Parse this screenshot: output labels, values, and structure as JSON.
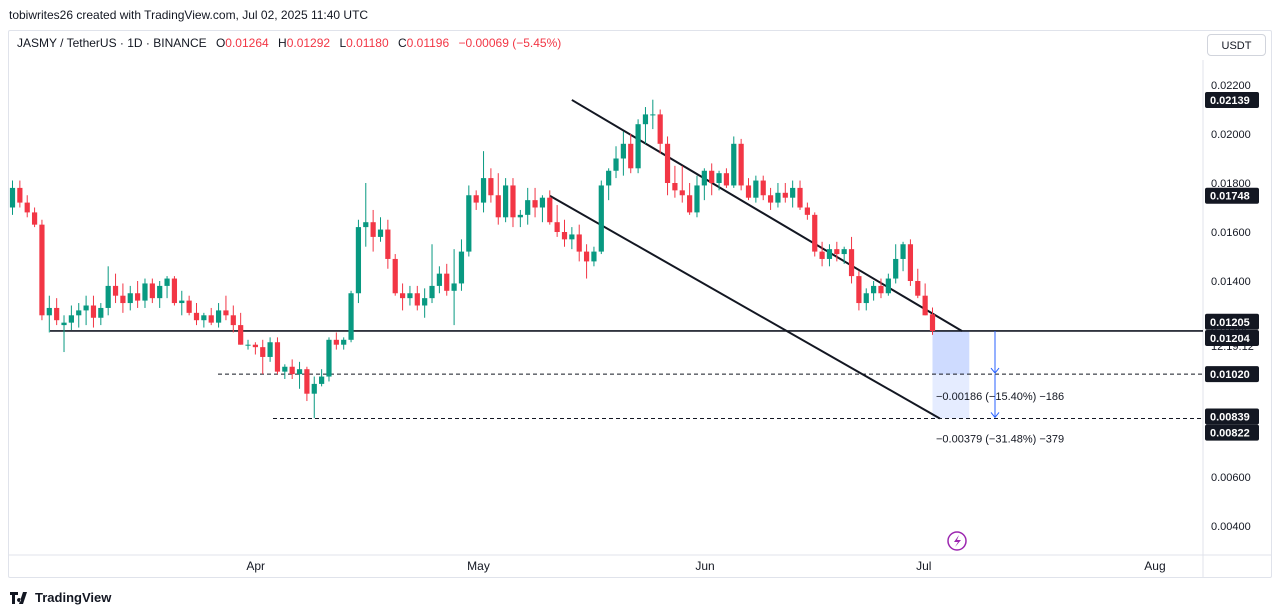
{
  "header": {
    "attribution": "tobiwrites26 created with TradingView.com, Jul 02, 2025 11:40 UTC",
    "symbol": "JASMY / TetherUS · 1D · BINANCE",
    "o_label": "O",
    "o_value": "0.01264",
    "h_label": "H",
    "h_value": "0.01292",
    "l_label": "L",
    "l_value": "0.01180",
    "c_label": "C",
    "c_value": "0.01196",
    "change": "−0.00069 (−5.45%)",
    "currency": "USDT"
  },
  "footer": {
    "brand": "TradingView"
  },
  "colors": {
    "up": "#089981",
    "down": "#f23645",
    "line": "#131722",
    "projection": "#2962ff"
  },
  "chart_data": {
    "type": "candlestick",
    "y_scale": "linear",
    "ylim": [
      0.0034,
      0.0232
    ],
    "y_ticks": [
      "0.02200",
      "0.02000",
      "0.01800",
      "0.01600",
      "0.01400",
      "0.00600",
      "0.00400"
    ],
    "x_range": [
      "2025-02-27",
      "2025-08-01"
    ],
    "x_ticks": [
      {
        "date": "2025-04-01",
        "label": "Apr"
      },
      {
        "date": "2025-05-01",
        "label": "May"
      },
      {
        "date": "2025-06-01",
        "label": "Jun"
      },
      {
        "date": "2025-07-01",
        "label": "Jul"
      },
      {
        "date": "2025-08-01",
        "label": "Aug"
      }
    ],
    "candles": [
      {
        "date": "2025-02-27",
        "o": 0.017,
        "h": 0.0181,
        "l": 0.0167,
        "c": 0.0178
      },
      {
        "date": "2025-02-28",
        "o": 0.0178,
        "h": 0.0181,
        "l": 0.017,
        "c": 0.0172
      },
      {
        "date": "2025-03-01",
        "o": 0.0172,
        "h": 0.0175,
        "l": 0.0166,
        "c": 0.0168
      },
      {
        "date": "2025-03-02",
        "o": 0.0168,
        "h": 0.017,
        "l": 0.0162,
        "c": 0.0163
      },
      {
        "date": "2025-03-03",
        "o": 0.0163,
        "h": 0.0165,
        "l": 0.0124,
        "c": 0.0126
      },
      {
        "date": "2025-03-04",
        "o": 0.0126,
        "h": 0.0134,
        "l": 0.0119,
        "c": 0.0129
      },
      {
        "date": "2025-03-05",
        "o": 0.0129,
        "h": 0.0133,
        "l": 0.0122,
        "c": 0.0124
      },
      {
        "date": "2025-03-06",
        "o": 0.0122,
        "h": 0.0126,
        "l": 0.0111,
        "c": 0.0123
      },
      {
        "date": "2025-03-07",
        "o": 0.0123,
        "h": 0.013,
        "l": 0.012,
        "c": 0.0126
      },
      {
        "date": "2025-03-08",
        "o": 0.0126,
        "h": 0.0131,
        "l": 0.0121,
        "c": 0.0128
      },
      {
        "date": "2025-03-09",
        "o": 0.0128,
        "h": 0.0134,
        "l": 0.0122,
        "c": 0.013
      },
      {
        "date": "2025-03-10",
        "o": 0.013,
        "h": 0.0134,
        "l": 0.0121,
        "c": 0.0125
      },
      {
        "date": "2025-03-11",
        "o": 0.0125,
        "h": 0.0131,
        "l": 0.0122,
        "c": 0.0129
      },
      {
        "date": "2025-03-12",
        "o": 0.0129,
        "h": 0.0146,
        "l": 0.0126,
        "c": 0.0138
      },
      {
        "date": "2025-03-13",
        "o": 0.0138,
        "h": 0.0143,
        "l": 0.0131,
        "c": 0.0134
      },
      {
        "date": "2025-03-14",
        "o": 0.0134,
        "h": 0.0139,
        "l": 0.0127,
        "c": 0.0131
      },
      {
        "date": "2025-03-15",
        "o": 0.0131,
        "h": 0.0138,
        "l": 0.0128,
        "c": 0.0135
      },
      {
        "date": "2025-03-16",
        "o": 0.0135,
        "h": 0.014,
        "l": 0.0129,
        "c": 0.0132
      },
      {
        "date": "2025-03-17",
        "o": 0.0132,
        "h": 0.0141,
        "l": 0.0129,
        "c": 0.0139
      },
      {
        "date": "2025-03-18",
        "o": 0.0139,
        "h": 0.0141,
        "l": 0.0131,
        "c": 0.0133
      },
      {
        "date": "2025-03-19",
        "o": 0.0133,
        "h": 0.014,
        "l": 0.0129,
        "c": 0.0138
      },
      {
        "date": "2025-03-20",
        "o": 0.0138,
        "h": 0.0142,
        "l": 0.0133,
        "c": 0.0141
      },
      {
        "date": "2025-03-21",
        "o": 0.0141,
        "h": 0.0142,
        "l": 0.013,
        "c": 0.0131
      },
      {
        "date": "2025-03-22",
        "o": 0.0131,
        "h": 0.0136,
        "l": 0.0126,
        "c": 0.0132
      },
      {
        "date": "2025-03-23",
        "o": 0.0132,
        "h": 0.0134,
        "l": 0.0126,
        "c": 0.0127
      },
      {
        "date": "2025-03-24",
        "o": 0.0127,
        "h": 0.0131,
        "l": 0.0122,
        "c": 0.0124
      },
      {
        "date": "2025-03-25",
        "o": 0.0124,
        "h": 0.0127,
        "l": 0.0121,
        "c": 0.0126
      },
      {
        "date": "2025-03-26",
        "o": 0.0126,
        "h": 0.0129,
        "l": 0.0122,
        "c": 0.0123
      },
      {
        "date": "2025-03-27",
        "o": 0.0123,
        "h": 0.0131,
        "l": 0.0121,
        "c": 0.0128
      },
      {
        "date": "2025-03-28",
        "o": 0.0128,
        "h": 0.0134,
        "l": 0.0124,
        "c": 0.0126
      },
      {
        "date": "2025-03-29",
        "o": 0.0126,
        "h": 0.013,
        "l": 0.0119,
        "c": 0.0122
      },
      {
        "date": "2025-03-30",
        "o": 0.0122,
        "h": 0.0127,
        "l": 0.0114,
        "c": 0.0114
      },
      {
        "date": "2025-03-31",
        "o": 0.0114,
        "h": 0.0116,
        "l": 0.0112,
        "c": 0.0114
      },
      {
        "date": "2025-04-01",
        "o": 0.0114,
        "h": 0.0115,
        "l": 0.011,
        "c": 0.0113
      },
      {
        "date": "2025-04-02",
        "o": 0.0113,
        "h": 0.0116,
        "l": 0.0102,
        "c": 0.0109
      },
      {
        "date": "2025-04-03",
        "o": 0.0109,
        "h": 0.0117,
        "l": 0.0107,
        "c": 0.0115
      },
      {
        "date": "2025-04-04",
        "o": 0.0115,
        "h": 0.0117,
        "l": 0.0102,
        "c": 0.0103
      },
      {
        "date": "2025-04-05",
        "o": 0.0103,
        "h": 0.0106,
        "l": 0.01,
        "c": 0.0105
      },
      {
        "date": "2025-04-06",
        "o": 0.0105,
        "h": 0.0108,
        "l": 0.01,
        "c": 0.0102
      },
      {
        "date": "2025-04-07",
        "o": 0.0102,
        "h": 0.0107,
        "l": 0.0096,
        "c": 0.0104
      },
      {
        "date": "2025-04-08",
        "o": 0.0104,
        "h": 0.0105,
        "l": 0.0091,
        "c": 0.0094
      },
      {
        "date": "2025-04-09",
        "o": 0.0094,
        "h": 0.0101,
        "l": 0.0084,
        "c": 0.0098
      },
      {
        "date": "2025-04-10",
        "o": 0.0098,
        "h": 0.0104,
        "l": 0.0097,
        "c": 0.0101
      },
      {
        "date": "2025-04-11",
        "o": 0.0101,
        "h": 0.0117,
        "l": 0.0099,
        "c": 0.0116
      },
      {
        "date": "2025-04-12",
        "o": 0.0116,
        "h": 0.0119,
        "l": 0.0112,
        "c": 0.0114
      },
      {
        "date": "2025-04-13",
        "o": 0.0114,
        "h": 0.0117,
        "l": 0.0112,
        "c": 0.0116
      },
      {
        "date": "2025-04-14",
        "o": 0.0116,
        "h": 0.0136,
        "l": 0.0115,
        "c": 0.0135
      },
      {
        "date": "2025-04-15",
        "o": 0.0135,
        "h": 0.0165,
        "l": 0.0131,
        "c": 0.0162
      },
      {
        "date": "2025-04-16",
        "o": 0.0162,
        "h": 0.018,
        "l": 0.0154,
        "c": 0.0164
      },
      {
        "date": "2025-04-17",
        "o": 0.0164,
        "h": 0.0169,
        "l": 0.0152,
        "c": 0.0158
      },
      {
        "date": "2025-04-18",
        "o": 0.0158,
        "h": 0.0166,
        "l": 0.0156,
        "c": 0.0161
      },
      {
        "date": "2025-04-19",
        "o": 0.0161,
        "h": 0.0165,
        "l": 0.0145,
        "c": 0.0149
      },
      {
        "date": "2025-04-20",
        "o": 0.0149,
        "h": 0.0151,
        "l": 0.0134,
        "c": 0.0135
      },
      {
        "date": "2025-04-21",
        "o": 0.0135,
        "h": 0.0139,
        "l": 0.0128,
        "c": 0.0133
      },
      {
        "date": "2025-04-22",
        "o": 0.0133,
        "h": 0.0138,
        "l": 0.013,
        "c": 0.0135
      },
      {
        "date": "2025-04-23",
        "o": 0.0135,
        "h": 0.0138,
        "l": 0.0128,
        "c": 0.013
      },
      {
        "date": "2025-04-24",
        "o": 0.013,
        "h": 0.0137,
        "l": 0.0125,
        "c": 0.0133
      },
      {
        "date": "2025-04-25",
        "o": 0.0133,
        "h": 0.0155,
        "l": 0.0131,
        "c": 0.0138
      },
      {
        "date": "2025-04-26",
        "o": 0.0138,
        "h": 0.0146,
        "l": 0.0135,
        "c": 0.0143
      },
      {
        "date": "2025-04-27",
        "o": 0.0143,
        "h": 0.0147,
        "l": 0.0134,
        "c": 0.0136
      },
      {
        "date": "2025-04-28",
        "o": 0.0136,
        "h": 0.0153,
        "l": 0.0122,
        "c": 0.0139
      },
      {
        "date": "2025-04-29",
        "o": 0.0139,
        "h": 0.0157,
        "l": 0.0136,
        "c": 0.0152
      },
      {
        "date": "2025-04-30",
        "o": 0.0152,
        "h": 0.0179,
        "l": 0.015,
        "c": 0.0175
      },
      {
        "date": "2025-05-01",
        "o": 0.0175,
        "h": 0.0177,
        "l": 0.0169,
        "c": 0.0172
      },
      {
        "date": "2025-05-02",
        "o": 0.0172,
        "h": 0.0193,
        "l": 0.0168,
        "c": 0.0182
      },
      {
        "date": "2025-05-03",
        "o": 0.0182,
        "h": 0.0186,
        "l": 0.0172,
        "c": 0.0175
      },
      {
        "date": "2025-05-04",
        "o": 0.0175,
        "h": 0.0184,
        "l": 0.0163,
        "c": 0.0166
      },
      {
        "date": "2025-05-05",
        "o": 0.0166,
        "h": 0.0182,
        "l": 0.0164,
        "c": 0.0179
      },
      {
        "date": "2025-05-06",
        "o": 0.0179,
        "h": 0.0182,
        "l": 0.0162,
        "c": 0.0166
      },
      {
        "date": "2025-05-07",
        "o": 0.0166,
        "h": 0.0169,
        "l": 0.0162,
        "c": 0.0167
      },
      {
        "date": "2025-05-08",
        "o": 0.0167,
        "h": 0.0178,
        "l": 0.0163,
        "c": 0.0173
      },
      {
        "date": "2025-05-09",
        "o": 0.0173,
        "h": 0.0178,
        "l": 0.0166,
        "c": 0.017
      },
      {
        "date": "2025-05-10",
        "o": 0.017,
        "h": 0.0175,
        "l": 0.0164,
        "c": 0.0174
      },
      {
        "date": "2025-05-11",
        "o": 0.0174,
        "h": 0.0177,
        "l": 0.0163,
        "c": 0.0164
      },
      {
        "date": "2025-05-12",
        "o": 0.0164,
        "h": 0.0171,
        "l": 0.0158,
        "c": 0.016
      },
      {
        "date": "2025-05-13",
        "o": 0.016,
        "h": 0.0165,
        "l": 0.0154,
        "c": 0.0157
      },
      {
        "date": "2025-05-14",
        "o": 0.0157,
        "h": 0.0162,
        "l": 0.0153,
        "c": 0.0159
      },
      {
        "date": "2025-05-15",
        "o": 0.0159,
        "h": 0.0163,
        "l": 0.0148,
        "c": 0.0152
      },
      {
        "date": "2025-05-16",
        "o": 0.0152,
        "h": 0.0155,
        "l": 0.0141,
        "c": 0.0148
      },
      {
        "date": "2025-05-17",
        "o": 0.0148,
        "h": 0.0154,
        "l": 0.0146,
        "c": 0.0152
      },
      {
        "date": "2025-05-18",
        "o": 0.0152,
        "h": 0.0181,
        "l": 0.0151,
        "c": 0.0179
      },
      {
        "date": "2025-05-19",
        "o": 0.0179,
        "h": 0.0186,
        "l": 0.0173,
        "c": 0.0185
      },
      {
        "date": "2025-05-20",
        "o": 0.0185,
        "h": 0.0195,
        "l": 0.0182,
        "c": 0.019
      },
      {
        "date": "2025-05-21",
        "o": 0.019,
        "h": 0.0201,
        "l": 0.0183,
        "c": 0.0196
      },
      {
        "date": "2025-05-22",
        "o": 0.0196,
        "h": 0.02,
        "l": 0.0184,
        "c": 0.0186
      },
      {
        "date": "2025-05-23",
        "o": 0.0186,
        "h": 0.0206,
        "l": 0.0184,
        "c": 0.0204
      },
      {
        "date": "2025-05-24",
        "o": 0.0204,
        "h": 0.0211,
        "l": 0.0196,
        "c": 0.0208
      },
      {
        "date": "2025-05-25",
        "o": 0.0208,
        "h": 0.0214,
        "l": 0.0202,
        "c": 0.0208
      },
      {
        "date": "2025-05-26",
        "o": 0.0208,
        "h": 0.021,
        "l": 0.0192,
        "c": 0.0196
      },
      {
        "date": "2025-05-27",
        "o": 0.0196,
        "h": 0.0199,
        "l": 0.0175,
        "c": 0.018
      },
      {
        "date": "2025-05-28",
        "o": 0.018,
        "h": 0.0187,
        "l": 0.0174,
        "c": 0.0177
      },
      {
        "date": "2025-05-29",
        "o": 0.0177,
        "h": 0.0187,
        "l": 0.0172,
        "c": 0.0175
      },
      {
        "date": "2025-05-30",
        "o": 0.0175,
        "h": 0.018,
        "l": 0.0167,
        "c": 0.0168
      },
      {
        "date": "2025-05-31",
        "o": 0.0168,
        "h": 0.0183,
        "l": 0.0166,
        "c": 0.0179
      },
      {
        "date": "2025-06-01",
        "o": 0.0179,
        "h": 0.0186,
        "l": 0.0173,
        "c": 0.0185
      },
      {
        "date": "2025-06-02",
        "o": 0.0185,
        "h": 0.0188,
        "l": 0.0175,
        "c": 0.018
      },
      {
        "date": "2025-06-03",
        "o": 0.018,
        "h": 0.0185,
        "l": 0.0177,
        "c": 0.0184
      },
      {
        "date": "2025-06-04",
        "o": 0.0184,
        "h": 0.0186,
        "l": 0.0178,
        "c": 0.0179
      },
      {
        "date": "2025-06-05",
        "o": 0.0179,
        "h": 0.0199,
        "l": 0.0178,
        "c": 0.0196
      },
      {
        "date": "2025-06-06",
        "o": 0.0196,
        "h": 0.0198,
        "l": 0.0177,
        "c": 0.0179
      },
      {
        "date": "2025-06-07",
        "o": 0.0179,
        "h": 0.0182,
        "l": 0.0173,
        "c": 0.0174
      },
      {
        "date": "2025-06-08",
        "o": 0.0174,
        "h": 0.0183,
        "l": 0.0172,
        "c": 0.0181
      },
      {
        "date": "2025-06-09",
        "o": 0.0181,
        "h": 0.0183,
        "l": 0.0173,
        "c": 0.0175
      },
      {
        "date": "2025-06-10",
        "o": 0.0175,
        "h": 0.0178,
        "l": 0.0169,
        "c": 0.0172
      },
      {
        "date": "2025-06-11",
        "o": 0.0172,
        "h": 0.018,
        "l": 0.017,
        "c": 0.0176
      },
      {
        "date": "2025-06-12",
        "o": 0.0176,
        "h": 0.018,
        "l": 0.0172,
        "c": 0.0174
      },
      {
        "date": "2025-06-13",
        "o": 0.0174,
        "h": 0.0181,
        "l": 0.017,
        "c": 0.0178
      },
      {
        "date": "2025-06-14",
        "o": 0.0178,
        "h": 0.0181,
        "l": 0.0169,
        "c": 0.017
      },
      {
        "date": "2025-06-15",
        "o": 0.017,
        "h": 0.0172,
        "l": 0.0165,
        "c": 0.0167
      },
      {
        "date": "2025-06-16",
        "o": 0.0167,
        "h": 0.0168,
        "l": 0.015,
        "c": 0.0152
      },
      {
        "date": "2025-06-17",
        "o": 0.0152,
        "h": 0.0156,
        "l": 0.0146,
        "c": 0.0149
      },
      {
        "date": "2025-06-18",
        "o": 0.0149,
        "h": 0.0155,
        "l": 0.0146,
        "c": 0.0153
      },
      {
        "date": "2025-06-19",
        "o": 0.0153,
        "h": 0.0156,
        "l": 0.0148,
        "c": 0.0151
      },
      {
        "date": "2025-06-20",
        "o": 0.0151,
        "h": 0.0154,
        "l": 0.0147,
        "c": 0.0153
      },
      {
        "date": "2025-06-21",
        "o": 0.0153,
        "h": 0.0158,
        "l": 0.0139,
        "c": 0.0142
      },
      {
        "date": "2025-06-22",
        "o": 0.0142,
        "h": 0.0144,
        "l": 0.0128,
        "c": 0.0131
      },
      {
        "date": "2025-06-23",
        "o": 0.0131,
        "h": 0.0137,
        "l": 0.0128,
        "c": 0.0135
      },
      {
        "date": "2025-06-24",
        "o": 0.0135,
        "h": 0.014,
        "l": 0.0132,
        "c": 0.0138
      },
      {
        "date": "2025-06-25",
        "o": 0.0138,
        "h": 0.0141,
        "l": 0.0133,
        "c": 0.0135
      },
      {
        "date": "2025-06-26",
        "o": 0.0135,
        "h": 0.0143,
        "l": 0.0134,
        "c": 0.0141
      },
      {
        "date": "2025-06-27",
        "o": 0.0141,
        "h": 0.0155,
        "l": 0.0139,
        "c": 0.0149
      },
      {
        "date": "2025-06-28",
        "o": 0.0149,
        "h": 0.0156,
        "l": 0.0144,
        "c": 0.0155
      },
      {
        "date": "2025-06-29",
        "o": 0.0155,
        "h": 0.0157,
        "l": 0.0138,
        "c": 0.014
      },
      {
        "date": "2025-06-30",
        "o": 0.014,
        "h": 0.0145,
        "l": 0.0133,
        "c": 0.0134
      },
      {
        "date": "2025-07-01",
        "o": 0.0134,
        "h": 0.0139,
        "l": 0.0126,
        "c": 0.0126
      },
      {
        "date": "2025-07-02",
        "o": 0.01264,
        "h": 0.01292,
        "l": 0.0118,
        "c": 0.01196
      }
    ],
    "annotations": {
      "horizontal_support": 0.01196,
      "dashed_levels": [
        0.0102,
        0.00839
      ],
      "channel_upper": [
        {
          "date": "2025-05-14",
          "price": 0.02139
        },
        {
          "date": "2025-07-06",
          "price": 0.01196
        }
      ],
      "channel_lower": [
        {
          "date": "2025-05-11",
          "price": 0.01748
        },
        {
          "date": "2025-07-03",
          "price": 0.00839
        }
      ],
      "price_labels": [
        {
          "price": 0.02139,
          "text": "0.02139",
          "style": "dark"
        },
        {
          "price": 0.01748,
          "text": "0.01748",
          "style": "dark"
        },
        {
          "price": 0.01205,
          "text": "0.01205",
          "style": "dark"
        },
        {
          "price": 0.01204,
          "text": "0.01204",
          "style": "dark"
        },
        {
          "price": 0.01196,
          "text": "0.01196",
          "style": "plain"
        },
        {
          "price": 0.0102,
          "text": "0.01020",
          "style": "dark"
        },
        {
          "price": 0.00839,
          "text": "0.00839",
          "style": "dark"
        },
        {
          "price": 0.00822,
          "text": "0.00822",
          "style": "dark"
        }
      ],
      "countdown": "12:19:12",
      "projection_box": {
        "from_date": "2025-07-02",
        "to_date": "2025-07-07",
        "top": 0.01196,
        "bottom": 0.00839
      },
      "measure1": "−0.00186 (−15.40%) −186",
      "measure2": "−0.00379 (−31.48%) −379"
    }
  }
}
